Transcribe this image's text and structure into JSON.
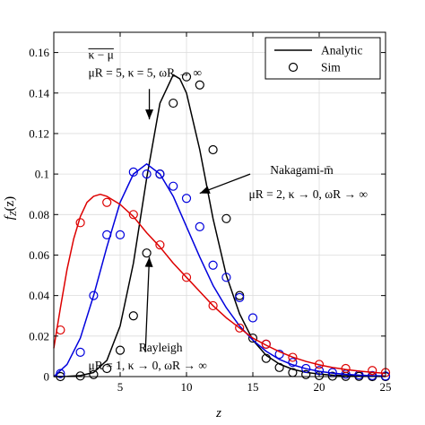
{
  "chart_data": {
    "type": "line",
    "xlabel": "z",
    "ylabel": "f_Z(z)",
    "xlim": [
      0,
      25
    ],
    "ylim": [
      0,
      0.17
    ],
    "x_ticks": [
      5,
      10,
      15,
      20,
      25
    ],
    "x_tick_labels": [
      "5",
      "10",
      "15",
      "20",
      "25"
    ],
    "y_ticks": [
      0,
      0.02,
      0.04,
      0.06,
      0.08,
      0.1,
      0.12,
      0.14,
      0.16
    ],
    "y_tick_labels": [
      "0",
      "0.02",
      "0.04",
      "0.06",
      "0.08",
      "0.1",
      "0.12",
      "0.14",
      "0.16"
    ],
    "grid": true,
    "legend": {
      "position": "top-right",
      "entries": [
        {
          "label": "Analytic",
          "style": "line"
        },
        {
          "label": "Sim",
          "style": "circle"
        }
      ]
    },
    "series": [
      {
        "color": "#000000",
        "curve_x": [
          0,
          1,
          2,
          3,
          4,
          5,
          6,
          7,
          8,
          9,
          9.5,
          10,
          11,
          12,
          13,
          14,
          15,
          16,
          17,
          18,
          19,
          20,
          21,
          22,
          23,
          24,
          25
        ],
        "curve_y": [
          0,
          0.0001,
          0.0005,
          0.002,
          0.008,
          0.025,
          0.056,
          0.098,
          0.135,
          0.149,
          0.147,
          0.14,
          0.112,
          0.078,
          0.05,
          0.031,
          0.018,
          0.0105,
          0.0062,
          0.0036,
          0.0021,
          0.0012,
          0.0007,
          0.0004,
          0.0002,
          0.0001,
          5e-05
        ],
        "points_x": [
          0.5,
          2,
          3,
          4,
          5,
          6,
          7,
          8,
          9,
          10,
          11,
          12,
          13,
          14,
          15,
          16,
          17,
          18,
          19,
          20,
          21,
          22,
          23,
          24,
          25
        ],
        "points_y": [
          0,
          0.0003,
          0.001,
          0.004,
          0.013,
          0.03,
          0.061,
          0.1,
          0.135,
          0.148,
          0.144,
          0.112,
          0.078,
          0.04,
          0.019,
          0.009,
          0.0045,
          0.002,
          0.001,
          0.0005,
          0.0002,
          0.0001,
          0.0001,
          0,
          0
        ]
      },
      {
        "color": "#0000dd",
        "curve_x": [
          0,
          1,
          2,
          3,
          4,
          5,
          6,
          7,
          8,
          9,
          10,
          11,
          12,
          13,
          14,
          15,
          16,
          17,
          18,
          19,
          20,
          21,
          22,
          23,
          24,
          25
        ],
        "curve_y": [
          0,
          0.006,
          0.019,
          0.04,
          0.064,
          0.086,
          0.1,
          0.105,
          0.1,
          0.089,
          0.074,
          0.059,
          0.045,
          0.034,
          0.025,
          0.018,
          0.0125,
          0.0085,
          0.0058,
          0.0039,
          0.0026,
          0.0017,
          0.0011,
          0.0007,
          0.00045,
          0.0003
        ],
        "points_x": [
          0.5,
          2,
          3,
          4,
          5,
          6,
          7,
          8,
          9,
          10,
          11,
          12,
          13,
          14,
          15,
          16,
          17,
          18,
          19,
          20,
          21,
          22,
          23,
          24,
          25
        ],
        "points_y": [
          0.0015,
          0.012,
          0.04,
          0.07,
          0.07,
          0.101,
          0.1,
          0.1,
          0.094,
          0.088,
          0.074,
          0.055,
          0.049,
          0.039,
          0.029,
          0.016,
          0.011,
          0.007,
          0.004,
          0.003,
          0.002,
          0.0012,
          0.0008,
          0.0005,
          0.0003
        ]
      },
      {
        "color": "#dd0000",
        "curve_x": [
          0,
          0.5,
          1,
          1.5,
          2,
          2.5,
          3,
          3.5,
          4,
          5,
          6,
          7,
          8,
          9,
          10,
          11,
          12,
          13,
          14,
          15,
          16,
          17,
          18,
          19,
          20,
          21,
          22,
          23,
          24,
          25
        ],
        "curve_y": [
          0.014,
          0.034,
          0.053,
          0.068,
          0.079,
          0.086,
          0.089,
          0.09,
          0.089,
          0.085,
          0.079,
          0.071,
          0.064,
          0.056,
          0.049,
          0.042,
          0.035,
          0.029,
          0.024,
          0.019,
          0.0155,
          0.0123,
          0.0096,
          0.0075,
          0.0058,
          0.0045,
          0.0035,
          0.0027,
          0.0021,
          0.0016
        ],
        "points_x": [
          0.5,
          2,
          4,
          6,
          8,
          10,
          12,
          14,
          16,
          18,
          20,
          22,
          24,
          25
        ],
        "points_y": [
          0.023,
          0.076,
          0.086,
          0.08,
          0.065,
          0.049,
          0.035,
          0.024,
          0.016,
          0.0095,
          0.006,
          0.004,
          0.003,
          0.002
        ]
      }
    ],
    "annotations": [
      {
        "text": "κ − μ",
        "overline": true,
        "x": 2.6,
        "y": 0.157
      },
      {
        "text": "μR = 5, κ = 5, ωR → ∞",
        "x": 2.6,
        "y": 0.148
      },
      {
        "text": "Nakagami-m̄",
        "x": 16.3,
        "y": 0.1
      },
      {
        "text": "μR = 2, κ → 0, ωR → ∞",
        "x": 14.7,
        "y": 0.088
      },
      {
        "text": "Rayleigh",
        "x": 6.4,
        "y": 0.0125
      },
      {
        "text": "μR = 1, κ → 0, ωR → ∞",
        "x": 2.6,
        "y": 0.0035
      }
    ],
    "arrows": [
      {
        "from": [
          7.2,
          0.142
        ],
        "to": [
          7.2,
          0.127
        ]
      },
      {
        "from": [
          14.8,
          0.1
        ],
        "to": [
          11.0,
          0.0905
        ]
      },
      {
        "from": [
          6.9,
          0.012
        ],
        "to": [
          7.2,
          0.059
        ]
      }
    ]
  }
}
